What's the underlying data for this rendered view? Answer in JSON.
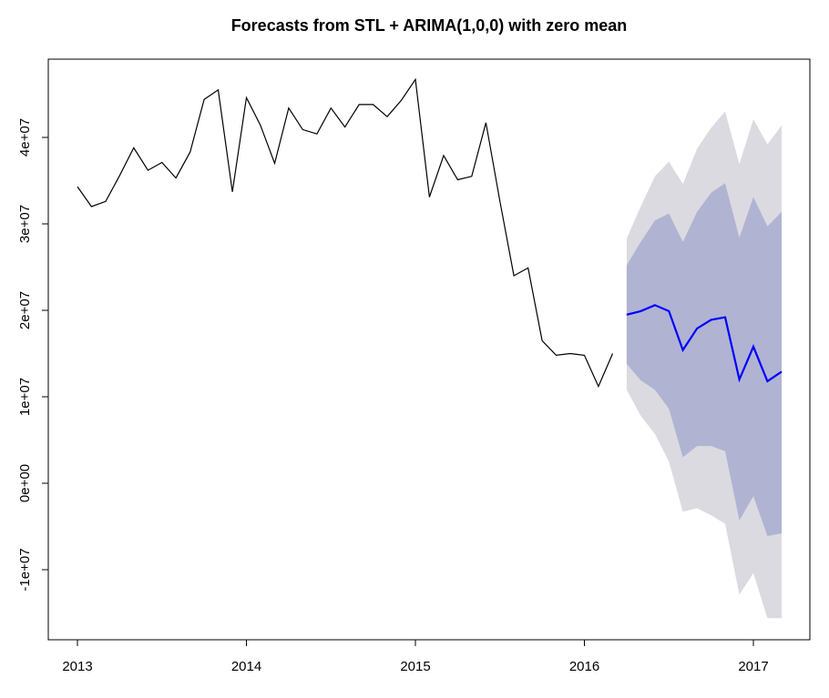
{
  "chart_data": {
    "type": "line",
    "title": "Forecasts from STL +  ARIMA(1,0,0) with zero mean",
    "xlabel": "",
    "ylabel": "",
    "xlim": [
      2013,
      2017.3
    ],
    "ylim": [
      -18000000,
      49000000
    ],
    "x_ticks": [
      {
        "value": 2013,
        "label": "2013"
      },
      {
        "value": 2014,
        "label": "2014"
      },
      {
        "value": 2015,
        "label": "2015"
      },
      {
        "value": 2016,
        "label": "2016"
      },
      {
        "value": 2017,
        "label": "2017"
      }
    ],
    "y_ticks": [
      {
        "value": -10000000,
        "label": "-1e+07"
      },
      {
        "value": 0,
        "label": "0e+00"
      },
      {
        "value": 10000000,
        "label": "1e+07"
      },
      {
        "value": 20000000,
        "label": "2e+07"
      },
      {
        "value": 30000000,
        "label": "3e+07"
      },
      {
        "value": 40000000,
        "label": "4e+07"
      }
    ],
    "historical": {
      "color": "#000000",
      "x": [
        2013.0,
        2013.083,
        2013.167,
        2013.25,
        2013.333,
        2013.417,
        2013.5,
        2013.583,
        2013.667,
        2013.75,
        2013.833,
        2013.917,
        2014.0,
        2014.083,
        2014.167,
        2014.25,
        2014.333,
        2014.417,
        2014.5,
        2014.583,
        2014.667,
        2014.75,
        2014.833,
        2014.917,
        2015.0,
        2015.083,
        2015.167,
        2015.25,
        2015.333,
        2015.417,
        2015.5,
        2015.583,
        2015.667,
        2015.75,
        2015.833,
        2015.917,
        2016.0,
        2016.083,
        2016.167
      ],
      "values": [
        34300000,
        32000000,
        32600000,
        35600000,
        38800000,
        36200000,
        37100000,
        35300000,
        38300000,
        44400000,
        45500000,
        33700000,
        44600000,
        41400000,
        37000000,
        43400000,
        40900000,
        40400000,
        43400000,
        41200000,
        43800000,
        43800000,
        42400000,
        44300000,
        46700000,
        33100000,
        37900000,
        35100000,
        35500000,
        41700000,
        32600000,
        24000000,
        24900000,
        16500000,
        14800000,
        15000000,
        14800000,
        11200000,
        15000000
      ]
    },
    "forecast": {
      "color": "#0000ff",
      "x": [
        2016.25,
        2016.333,
        2016.417,
        2016.5,
        2016.583,
        2016.667,
        2016.75,
        2016.833,
        2016.917,
        2017.0,
        2017.083,
        2017.167
      ],
      "values": [
        19500000,
        19900000,
        20600000,
        19900000,
        15400000,
        17900000,
        18900000,
        19200000,
        12000000,
        15800000,
        11800000,
        12900000
      ],
      "lo80": [
        13800000,
        11900000,
        10800000,
        8600000,
        3000000,
        4300000,
        4300000,
        3700000,
        -4300000,
        -1500000,
        -6100000,
        -5800000
      ],
      "hi80": [
        25200000,
        27900000,
        30400000,
        31200000,
        27900000,
        31400000,
        33600000,
        34700000,
        28400000,
        33100000,
        29700000,
        31400000
      ],
      "lo95": [
        10800000,
        7800000,
        5700000,
        2500000,
        -3300000,
        -2900000,
        -3700000,
        -4700000,
        -12900000,
        -10400000,
        -15600000,
        -15600000
      ],
      "hi95": [
        28300000,
        32000000,
        35500000,
        37200000,
        34600000,
        38700000,
        41100000,
        43000000,
        36900000,
        42100000,
        39200000,
        41400000
      ],
      "band80_color": "#b1b3d2",
      "band95_color": "#dbdae1"
    },
    "grid": false,
    "legend": "none"
  }
}
